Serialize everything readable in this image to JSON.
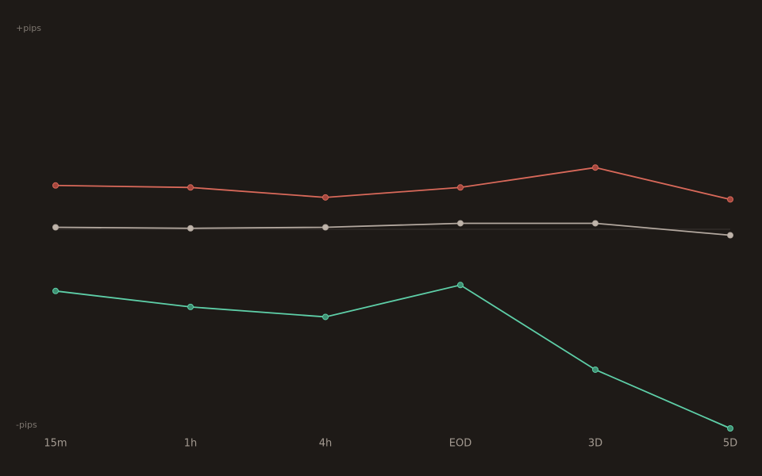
{
  "chart_data": {
    "type": "line",
    "y_top_label": "+pips",
    "y_bottom_label": "-pips",
    "categories": [
      "15m",
      "1h",
      "4h",
      "EOD",
      "3D",
      "5D"
    ],
    "series": [
      {
        "color": "#d9695a",
        "marker_color": "#a4463d",
        "values": [
          22,
          21,
          16,
          21,
          31,
          15
        ]
      },
      {
        "color": "#b3a89f",
        "marker_color": "#bfb4aa",
        "values": [
          1,
          0.5,
          1,
          3,
          3,
          -3
        ]
      },
      {
        "color": "#5ecfa8",
        "marker_color": "#3e8f72",
        "values": [
          -31,
          -39,
          -44,
          -28,
          -70.5,
          -100
        ]
      }
    ],
    "ylim": [
      -100,
      100
    ],
    "zero_line": true
  }
}
